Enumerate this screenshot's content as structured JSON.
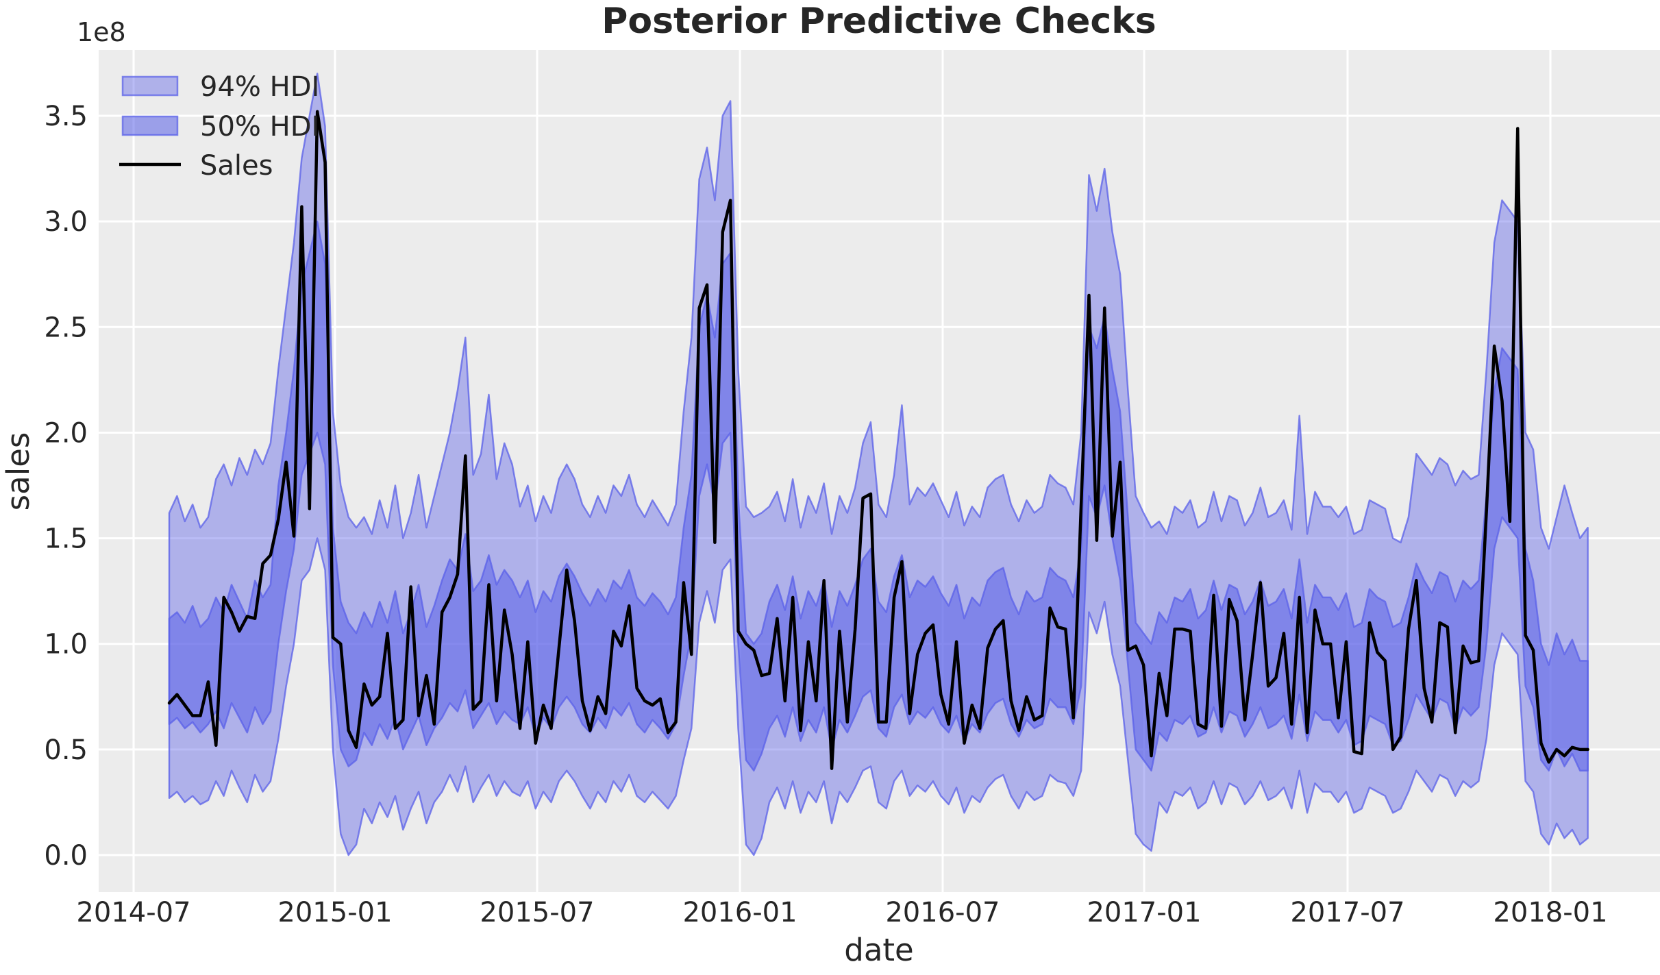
{
  "title": "Posterior Predictive Checks",
  "axis": {
    "xlabel": "date",
    "ylabel": "sales",
    "y_offset_label": "1e8",
    "x_ticks": [
      {
        "label": "2014-07",
        "week": -4.57
      },
      {
        "label": "2015-01",
        "week": 21.27
      },
      {
        "label": "2015-07",
        "week": 47.2
      },
      {
        "label": "2016-01",
        "week": 73.22
      },
      {
        "label": "2016-07",
        "week": 99.23
      },
      {
        "label": "2017-01",
        "week": 125.08
      },
      {
        "label": "2017-07",
        "week": 151.18
      },
      {
        "label": "2018-01",
        "week": 177.2
      }
    ],
    "y_ticks": [
      {
        "label": "0.0",
        "value": 0.0
      },
      {
        "label": "0.5",
        "value": 0.5
      },
      {
        "label": "1.0",
        "value": 1.0
      },
      {
        "label": "1.5",
        "value": 1.5
      },
      {
        "label": "2.0",
        "value": 2.0
      },
      {
        "label": "2.5",
        "value": 2.5
      },
      {
        "label": "3.0",
        "value": 3.0
      },
      {
        "label": "3.5",
        "value": 3.5
      }
    ],
    "xlim_weeks": [
      -9.05,
      191.3
    ],
    "ylim": [
      -0.175,
      3.81
    ]
  },
  "legend": {
    "items": [
      {
        "label": "94% HDI",
        "type": "patch",
        "key": "hdi94"
      },
      {
        "label": "50% HDI",
        "type": "patch",
        "key": "hdi50"
      },
      {
        "label": "Sales",
        "type": "line",
        "key": "sales"
      }
    ]
  },
  "colors": {
    "figure_bg": "#ffffff",
    "plot_bg": "#ececec",
    "grid": "#ffffff",
    "band_base": "#5a60e8",
    "band94_opacity": 0.42,
    "band50_opacity": 0.55,
    "band_edge_opacity": 0.75,
    "sales_line": "#000000",
    "text": "#262626"
  },
  "chart_data": {
    "type": "line+area-bands",
    "description": "Posterior predictive check: weekly sales (1e8 units) with 94% and 50% HDI bands, weekly points from 2014-08 to 2018-01",
    "x_unit": "week index (7-day steps, week 0 ≈ 2014-08-03; x axis labeled by date)",
    "y_unit": "sales × 1e8",
    "sales": [
      0.72,
      0.76,
      0.71,
      0.66,
      0.66,
      0.82,
      0.52,
      1.22,
      1.15,
      1.06,
      1.13,
      1.12,
      1.38,
      1.42,
      1.59,
      1.86,
      1.51,
      3.07,
      1.64,
      3.52,
      3.28,
      1.03,
      1.0,
      0.59,
      0.51,
      0.81,
      0.71,
      0.75,
      1.05,
      0.6,
      0.64,
      1.27,
      0.66,
      0.85,
      0.62,
      1.15,
      1.22,
      1.33,
      1.89,
      0.69,
      0.73,
      1.28,
      0.73,
      1.16,
      0.95,
      0.6,
      1.01,
      0.53,
      0.71,
      0.6,
      0.98,
      1.35,
      1.11,
      0.73,
      0.59,
      0.75,
      0.67,
      1.06,
      0.99,
      1.18,
      0.79,
      0.73,
      0.71,
      0.74,
      0.58,
      0.63,
      1.29,
      0.95,
      2.59,
      2.7,
      1.48,
      2.95,
      3.1,
      1.06,
      1.0,
      0.97,
      0.85,
      0.86,
      1.12,
      0.73,
      1.22,
      0.59,
      1.01,
      0.73,
      1.3,
      0.41,
      1.06,
      0.63,
      1.07,
      1.69,
      1.71,
      0.63,
      0.63,
      1.22,
      1.39,
      0.67,
      0.95,
      1.05,
      1.09,
      0.76,
      0.62,
      1.01,
      0.53,
      0.71,
      0.6,
      0.98,
      1.07,
      1.11,
      0.73,
      0.59,
      0.75,
      0.64,
      0.66,
      1.17,
      1.08,
      1.07,
      0.65,
      1.66,
      2.65,
      1.49,
      2.59,
      1.51,
      1.86,
      0.97,
      0.99,
      0.9,
      0.47,
      0.86,
      0.66,
      1.07,
      1.07,
      1.06,
      0.62,
      0.6,
      1.23,
      0.61,
      1.21,
      1.11,
      0.64,
      0.95,
      1.29,
      0.8,
      0.84,
      1.05,
      0.62,
      1.22,
      0.58,
      1.16,
      1.0,
      1.0,
      0.65,
      1.01,
      0.49,
      0.48,
      1.1,
      0.96,
      0.92,
      0.5,
      0.56,
      1.07,
      1.3,
      0.79,
      0.63,
      1.1,
      1.08,
      0.58,
      0.99,
      0.91,
      0.92,
      1.63,
      2.41,
      2.15,
      1.58,
      3.44,
      1.04,
      0.97,
      0.53,
      0.44,
      0.5,
      0.47,
      0.51,
      0.5,
      0.5
    ],
    "hdi94_lower": [
      0.27,
      0.3,
      0.25,
      0.28,
      0.24,
      0.26,
      0.35,
      0.28,
      0.4,
      0.32,
      0.25,
      0.38,
      0.3,
      0.35,
      0.55,
      0.8,
      1.0,
      1.3,
      1.35,
      1.5,
      1.35,
      0.5,
      0.1,
      0.0,
      0.05,
      0.22,
      0.15,
      0.25,
      0.18,
      0.28,
      0.12,
      0.22,
      0.3,
      0.15,
      0.25,
      0.3,
      0.38,
      0.3,
      0.42,
      0.25,
      0.32,
      0.38,
      0.28,
      0.35,
      0.3,
      0.28,
      0.35,
      0.22,
      0.3,
      0.25,
      0.35,
      0.4,
      0.35,
      0.28,
      0.22,
      0.3,
      0.25,
      0.35,
      0.3,
      0.38,
      0.28,
      0.25,
      0.3,
      0.26,
      0.22,
      0.28,
      0.45,
      0.6,
      1.1,
      1.25,
      1.1,
      1.35,
      1.4,
      0.6,
      0.05,
      0.0,
      0.08,
      0.25,
      0.32,
      0.22,
      0.35,
      0.2,
      0.3,
      0.25,
      0.35,
      0.15,
      0.3,
      0.25,
      0.32,
      0.4,
      0.42,
      0.25,
      0.22,
      0.35,
      0.4,
      0.28,
      0.33,
      0.3,
      0.35,
      0.28,
      0.24,
      0.32,
      0.2,
      0.28,
      0.25,
      0.32,
      0.36,
      0.38,
      0.28,
      0.22,
      0.3,
      0.26,
      0.28,
      0.38,
      0.35,
      0.34,
      0.28,
      0.4,
      1.15,
      1.05,
      1.2,
      0.95,
      0.8,
      0.45,
      0.1,
      0.05,
      0.02,
      0.25,
      0.2,
      0.3,
      0.28,
      0.32,
      0.22,
      0.25,
      0.35,
      0.24,
      0.34,
      0.32,
      0.24,
      0.28,
      0.35,
      0.26,
      0.28,
      0.32,
      0.22,
      0.4,
      0.2,
      0.34,
      0.3,
      0.3,
      0.25,
      0.3,
      0.2,
      0.22,
      0.32,
      0.3,
      0.28,
      0.2,
      0.22,
      0.3,
      0.4,
      0.35,
      0.3,
      0.38,
      0.36,
      0.28,
      0.35,
      0.32,
      0.35,
      0.55,
      0.9,
      1.05,
      1.0,
      0.95,
      0.35,
      0.3,
      0.1,
      0.05,
      0.15,
      0.08,
      0.12,
      0.05,
      0.08
    ],
    "hdi94_upper": [
      1.62,
      1.7,
      1.58,
      1.66,
      1.55,
      1.6,
      1.78,
      1.85,
      1.75,
      1.88,
      1.8,
      1.92,
      1.85,
      1.95,
      2.3,
      2.6,
      2.9,
      3.3,
      3.5,
      3.7,
      3.45,
      2.1,
      1.75,
      1.6,
      1.55,
      1.6,
      1.52,
      1.68,
      1.55,
      1.75,
      1.5,
      1.62,
      1.8,
      1.55,
      1.7,
      1.85,
      2.0,
      2.2,
      2.45,
      1.8,
      1.9,
      2.18,
      1.78,
      1.95,
      1.85,
      1.65,
      1.75,
      1.58,
      1.7,
      1.62,
      1.78,
      1.85,
      1.78,
      1.66,
      1.6,
      1.7,
      1.62,
      1.75,
      1.7,
      1.8,
      1.66,
      1.6,
      1.68,
      1.62,
      1.56,
      1.66,
      2.1,
      2.45,
      3.2,
      3.35,
      3.1,
      3.5,
      3.57,
      2.3,
      1.65,
      1.6,
      1.62,
      1.65,
      1.72,
      1.58,
      1.78,
      1.55,
      1.7,
      1.62,
      1.76,
      1.52,
      1.7,
      1.62,
      1.74,
      1.95,
      2.05,
      1.66,
      1.6,
      1.8,
      2.13,
      1.66,
      1.74,
      1.7,
      1.76,
      1.68,
      1.6,
      1.72,
      1.56,
      1.65,
      1.6,
      1.74,
      1.78,
      1.8,
      1.66,
      1.58,
      1.68,
      1.62,
      1.65,
      1.8,
      1.76,
      1.74,
      1.66,
      2.0,
      3.22,
      3.05,
      3.25,
      2.95,
      2.75,
      2.2,
      1.7,
      1.62,
      1.55,
      1.58,
      1.52,
      1.65,
      1.62,
      1.68,
      1.55,
      1.58,
      1.72,
      1.58,
      1.7,
      1.68,
      1.56,
      1.62,
      1.74,
      1.6,
      1.62,
      1.68,
      1.54,
      2.08,
      1.52,
      1.72,
      1.65,
      1.65,
      1.6,
      1.65,
      1.52,
      1.54,
      1.68,
      1.66,
      1.64,
      1.5,
      1.48,
      1.6,
      1.9,
      1.85,
      1.8,
      1.88,
      1.85,
      1.75,
      1.82,
      1.78,
      1.8,
      2.3,
      2.9,
      3.1,
      3.05,
      3.0,
      2.0,
      1.92,
      1.55,
      1.45,
      1.6,
      1.75,
      1.62,
      1.5,
      1.55
    ],
    "hdi50_lower": [
      0.62,
      0.65,
      0.6,
      0.63,
      0.58,
      0.62,
      0.68,
      0.6,
      0.72,
      0.65,
      0.58,
      0.7,
      0.62,
      0.68,
      1.0,
      1.25,
      1.45,
      1.8,
      1.9,
      2.0,
      1.85,
      0.9,
      0.5,
      0.42,
      0.45,
      0.58,
      0.52,
      0.62,
      0.55,
      0.65,
      0.5,
      0.58,
      0.66,
      0.52,
      0.6,
      0.65,
      0.72,
      0.68,
      0.78,
      0.6,
      0.66,
      0.72,
      0.62,
      0.68,
      0.64,
      0.62,
      0.7,
      0.56,
      0.65,
      0.6,
      0.7,
      0.75,
      0.7,
      0.62,
      0.58,
      0.65,
      0.6,
      0.7,
      0.66,
      0.72,
      0.62,
      0.58,
      0.64,
      0.6,
      0.55,
      0.62,
      0.85,
      1.05,
      1.7,
      1.85,
      1.65,
      1.95,
      2.0,
      1.0,
      0.45,
      0.4,
      0.48,
      0.6,
      0.66,
      0.56,
      0.7,
      0.54,
      0.64,
      0.58,
      0.7,
      0.5,
      0.64,
      0.58,
      0.66,
      0.75,
      0.78,
      0.6,
      0.56,
      0.7,
      0.76,
      0.62,
      0.68,
      0.65,
      0.7,
      0.62,
      0.58,
      0.66,
      0.54,
      0.62,
      0.58,
      0.67,
      0.72,
      0.74,
      0.62,
      0.56,
      0.64,
      0.6,
      0.62,
      0.74,
      0.7,
      0.7,
      0.62,
      0.8,
      1.7,
      1.6,
      1.75,
      1.5,
      1.3,
      0.9,
      0.5,
      0.45,
      0.4,
      0.58,
      0.54,
      0.64,
      0.62,
      0.66,
      0.56,
      0.58,
      0.7,
      0.58,
      0.68,
      0.66,
      0.56,
      0.62,
      0.7,
      0.6,
      0.62,
      0.66,
      0.55,
      0.76,
      0.54,
      0.68,
      0.64,
      0.64,
      0.58,
      0.64,
      0.52,
      0.54,
      0.66,
      0.64,
      0.62,
      0.52,
      0.54,
      0.64,
      0.76,
      0.7,
      0.64,
      0.74,
      0.72,
      0.6,
      0.7,
      0.66,
      0.7,
      1.0,
      1.45,
      1.6,
      1.55,
      1.5,
      0.8,
      0.7,
      0.45,
      0.4,
      0.5,
      0.42,
      0.48,
      0.4,
      0.4
    ],
    "hdi50_upper": [
      1.12,
      1.15,
      1.1,
      1.18,
      1.08,
      1.12,
      1.22,
      1.15,
      1.28,
      1.2,
      1.12,
      1.3,
      1.22,
      1.28,
      1.75,
      2.0,
      2.3,
      2.7,
      2.85,
      3.0,
      2.8,
      1.55,
      1.2,
      1.1,
      1.05,
      1.15,
      1.08,
      1.2,
      1.1,
      1.25,
      1.05,
      1.15,
      1.28,
      1.08,
      1.18,
      1.3,
      1.4,
      1.35,
      1.52,
      1.25,
      1.3,
      1.42,
      1.28,
      1.35,
      1.3,
      1.22,
      1.3,
      1.15,
      1.25,
      1.2,
      1.32,
      1.38,
      1.32,
      1.24,
      1.18,
      1.26,
      1.2,
      1.3,
      1.26,
      1.35,
      1.22,
      1.18,
      1.24,
      1.2,
      1.14,
      1.22,
      1.55,
      1.8,
      2.5,
      2.65,
      2.45,
      2.8,
      2.85,
      1.7,
      1.05,
      1.0,
      1.05,
      1.2,
      1.28,
      1.16,
      1.32,
      1.12,
      1.25,
      1.18,
      1.3,
      1.08,
      1.25,
      1.18,
      1.28,
      1.4,
      1.45,
      1.2,
      1.15,
      1.32,
      1.42,
      1.22,
      1.3,
      1.27,
      1.32,
      1.24,
      1.18,
      1.28,
      1.12,
      1.22,
      1.18,
      1.3,
      1.34,
      1.36,
      1.22,
      1.14,
      1.25,
      1.2,
      1.22,
      1.36,
      1.32,
      1.3,
      1.22,
      1.45,
      2.5,
      2.4,
      2.55,
      2.3,
      2.1,
      1.6,
      1.1,
      1.05,
      1.0,
      1.15,
      1.1,
      1.22,
      1.2,
      1.26,
      1.12,
      1.16,
      1.3,
      1.16,
      1.28,
      1.26,
      1.14,
      1.2,
      1.3,
      1.18,
      1.2,
      1.26,
      1.12,
      1.4,
      1.1,
      1.28,
      1.22,
      1.22,
      1.16,
      1.24,
      1.08,
      1.1,
      1.26,
      1.22,
      1.2,
      1.08,
      1.1,
      1.22,
      1.38,
      1.3,
      1.24,
      1.34,
      1.32,
      1.2,
      1.3,
      1.26,
      1.3,
      1.7,
      2.2,
      2.4,
      2.35,
      2.3,
      1.45,
      1.3,
      1.0,
      0.9,
      1.05,
      0.95,
      1.02,
      0.92,
      0.92
    ]
  }
}
